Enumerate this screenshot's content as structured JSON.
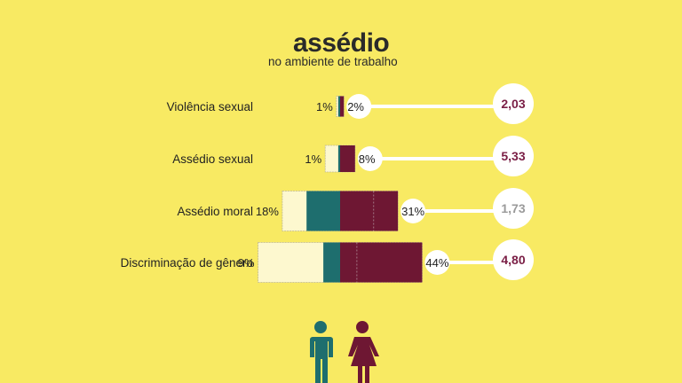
{
  "header": {
    "title": "assédio",
    "subtitle": "no ambiente de trabalho"
  },
  "colors": {
    "background": "#F8EA63",
    "men": "#1E6E6E",
    "women": "#6E1733",
    "ratio_highlight": "#7A1E45",
    "ratio_muted": "#9A9A9A"
  },
  "chart_data": {
    "type": "bar",
    "categories": [
      "Violência sexual",
      "Assédio sexual",
      "Assédio moral",
      "Discriminação de gênero"
    ],
    "series": [
      {
        "values": [
          1,
          1,
          18,
          9
        ]
      },
      {
        "values": [
          2,
          8,
          31,
          44
        ]
      }
    ],
    "value_labels_left": [
      "1%",
      "1%",
      "18%",
      "9%"
    ],
    "value_labels_right": [
      "2%",
      "8%",
      "31%",
      "44%"
    ],
    "ratios": [
      "2,03",
      "5,33",
      "1,73",
      "4,80"
    ],
    "ratio_highlight": [
      true,
      true,
      false,
      true
    ],
    "grid": false
  },
  "icons": [
    "man-icon",
    "woman-icon"
  ]
}
